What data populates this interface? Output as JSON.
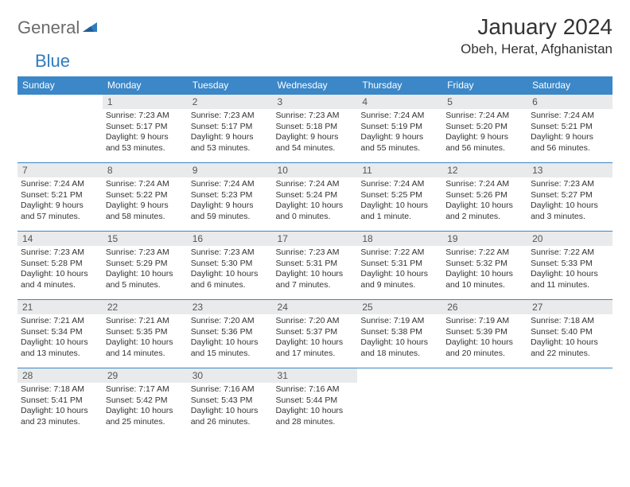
{
  "brand": {
    "part1": "General",
    "part2": "Blue"
  },
  "title": "January 2024",
  "location": "Obeh, Herat, Afghanistan",
  "colors": {
    "header_bg": "#3b87c8",
    "header_text": "#ffffff",
    "daynum_bg": "#e9eaeb",
    "rule": "#3b87c8",
    "logo_gray": "#6b6b6b",
    "logo_blue": "#2f7bbf"
  },
  "weekdays": [
    "Sunday",
    "Monday",
    "Tuesday",
    "Wednesday",
    "Thursday",
    "Friday",
    "Saturday"
  ],
  "start_offset": 1,
  "days": [
    {
      "n": 1,
      "sunrise": "7:23 AM",
      "sunset": "5:17 PM",
      "daylight": "9 hours and 53 minutes."
    },
    {
      "n": 2,
      "sunrise": "7:23 AM",
      "sunset": "5:17 PM",
      "daylight": "9 hours and 53 minutes."
    },
    {
      "n": 3,
      "sunrise": "7:23 AM",
      "sunset": "5:18 PM",
      "daylight": "9 hours and 54 minutes."
    },
    {
      "n": 4,
      "sunrise": "7:24 AM",
      "sunset": "5:19 PM",
      "daylight": "9 hours and 55 minutes."
    },
    {
      "n": 5,
      "sunrise": "7:24 AM",
      "sunset": "5:20 PM",
      "daylight": "9 hours and 56 minutes."
    },
    {
      "n": 6,
      "sunrise": "7:24 AM",
      "sunset": "5:21 PM",
      "daylight": "9 hours and 56 minutes."
    },
    {
      "n": 7,
      "sunrise": "7:24 AM",
      "sunset": "5:21 PM",
      "daylight": "9 hours and 57 minutes."
    },
    {
      "n": 8,
      "sunrise": "7:24 AM",
      "sunset": "5:22 PM",
      "daylight": "9 hours and 58 minutes."
    },
    {
      "n": 9,
      "sunrise": "7:24 AM",
      "sunset": "5:23 PM",
      "daylight": "9 hours and 59 minutes."
    },
    {
      "n": 10,
      "sunrise": "7:24 AM",
      "sunset": "5:24 PM",
      "daylight": "10 hours and 0 minutes."
    },
    {
      "n": 11,
      "sunrise": "7:24 AM",
      "sunset": "5:25 PM",
      "daylight": "10 hours and 1 minute."
    },
    {
      "n": 12,
      "sunrise": "7:24 AM",
      "sunset": "5:26 PM",
      "daylight": "10 hours and 2 minutes."
    },
    {
      "n": 13,
      "sunrise": "7:23 AM",
      "sunset": "5:27 PM",
      "daylight": "10 hours and 3 minutes."
    },
    {
      "n": 14,
      "sunrise": "7:23 AM",
      "sunset": "5:28 PM",
      "daylight": "10 hours and 4 minutes."
    },
    {
      "n": 15,
      "sunrise": "7:23 AM",
      "sunset": "5:29 PM",
      "daylight": "10 hours and 5 minutes."
    },
    {
      "n": 16,
      "sunrise": "7:23 AM",
      "sunset": "5:30 PM",
      "daylight": "10 hours and 6 minutes."
    },
    {
      "n": 17,
      "sunrise": "7:23 AM",
      "sunset": "5:31 PM",
      "daylight": "10 hours and 7 minutes."
    },
    {
      "n": 18,
      "sunrise": "7:22 AM",
      "sunset": "5:31 PM",
      "daylight": "10 hours and 9 minutes."
    },
    {
      "n": 19,
      "sunrise": "7:22 AM",
      "sunset": "5:32 PM",
      "daylight": "10 hours and 10 minutes."
    },
    {
      "n": 20,
      "sunrise": "7:22 AM",
      "sunset": "5:33 PM",
      "daylight": "10 hours and 11 minutes."
    },
    {
      "n": 21,
      "sunrise": "7:21 AM",
      "sunset": "5:34 PM",
      "daylight": "10 hours and 13 minutes."
    },
    {
      "n": 22,
      "sunrise": "7:21 AM",
      "sunset": "5:35 PM",
      "daylight": "10 hours and 14 minutes."
    },
    {
      "n": 23,
      "sunrise": "7:20 AM",
      "sunset": "5:36 PM",
      "daylight": "10 hours and 15 minutes."
    },
    {
      "n": 24,
      "sunrise": "7:20 AM",
      "sunset": "5:37 PM",
      "daylight": "10 hours and 17 minutes."
    },
    {
      "n": 25,
      "sunrise": "7:19 AM",
      "sunset": "5:38 PM",
      "daylight": "10 hours and 18 minutes."
    },
    {
      "n": 26,
      "sunrise": "7:19 AM",
      "sunset": "5:39 PM",
      "daylight": "10 hours and 20 minutes."
    },
    {
      "n": 27,
      "sunrise": "7:18 AM",
      "sunset": "5:40 PM",
      "daylight": "10 hours and 22 minutes."
    },
    {
      "n": 28,
      "sunrise": "7:18 AM",
      "sunset": "5:41 PM",
      "daylight": "10 hours and 23 minutes."
    },
    {
      "n": 29,
      "sunrise": "7:17 AM",
      "sunset": "5:42 PM",
      "daylight": "10 hours and 25 minutes."
    },
    {
      "n": 30,
      "sunrise": "7:16 AM",
      "sunset": "5:43 PM",
      "daylight": "10 hours and 26 minutes."
    },
    {
      "n": 31,
      "sunrise": "7:16 AM",
      "sunset": "5:44 PM",
      "daylight": "10 hours and 28 minutes."
    }
  ],
  "labels": {
    "sunrise": "Sunrise:",
    "sunset": "Sunset:",
    "daylight": "Daylight:"
  }
}
